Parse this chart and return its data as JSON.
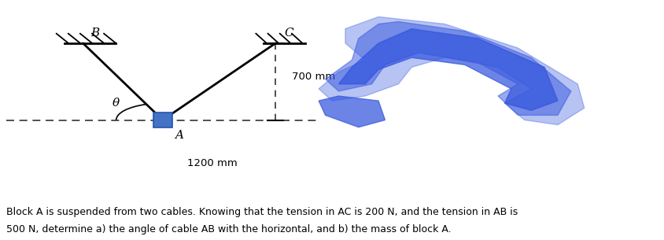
{
  "bg_color": "#ffffff",
  "fig_width": 8.44,
  "fig_height": 3.05,
  "dpi": 100,
  "A": [
    0.245,
    0.5
  ],
  "B": [
    0.125,
    0.82
  ],
  "C": [
    0.415,
    0.82
  ],
  "label_B": "B",
  "label_C": "C",
  "label_A": "A",
  "label_theta": "θ",
  "dim_700": "700 mm",
  "dim_1200": "1200 mm",
  "body_text_line1": "Block A is suspended from two cables. Knowing that the tension in AC is 200 N, and the tension in AB is",
  "body_text_line2": "500 N, determine a) the angle of cable AB with the horizontal, and b) the mass of block A.",
  "block_color": "#4472C4",
  "block_edge_color": "#2255aa",
  "line_color": "#000000",
  "text_color": "#000000",
  "dashed_color": "#333333",
  "blob_color": "#3355dd",
  "blob_alpha": 0.72
}
